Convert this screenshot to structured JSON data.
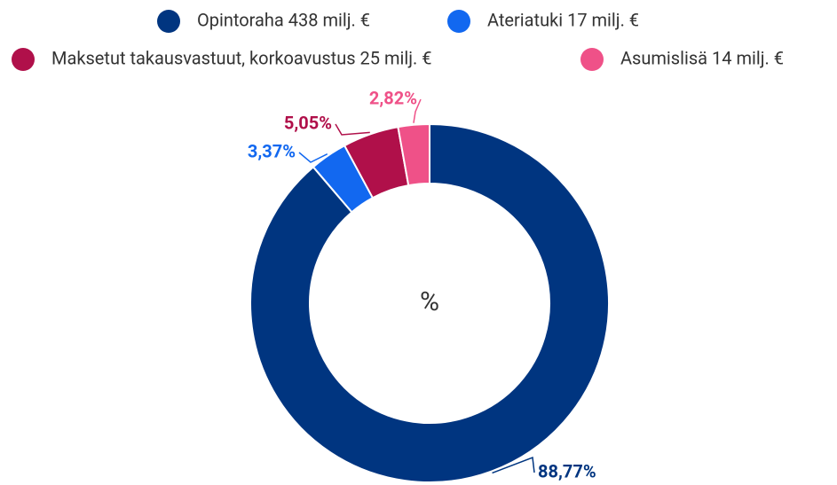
{
  "chart_data": {
    "type": "donut",
    "center_label": "%",
    "categories": [
      "Opintoraha 438 milj. €",
      "Ateriatuki 17 milj. €",
      "Maksetut takausvastuut, korkoavustus 25 milj. €",
      "Asumislisä 14 milj. €"
    ],
    "values": [
      88.77,
      3.37,
      5.05,
      2.82
    ],
    "value_labels": [
      "88,77%",
      "3,37%",
      "5,05%",
      "2,82%"
    ],
    "colors": [
      "#003580",
      "#1268f0",
      "#b0104a",
      "#ef5188"
    ],
    "legend": "top"
  }
}
